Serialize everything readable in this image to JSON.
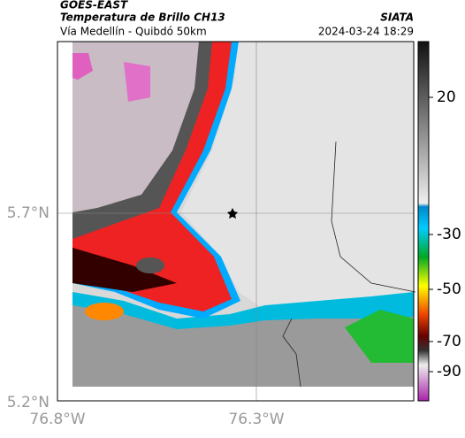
{
  "header": {
    "title": "GOES-EAST",
    "subtitle": "Temperatura de Brillo CH13",
    "source": "SIATA",
    "route": "Vía Medellín - Quibdó 50km",
    "timestamp": "2024-03-24 18:29"
  },
  "axes": {
    "y_labels": [
      "5.7°N",
      "5.2°N"
    ],
    "x_labels": [
      "76.8°W",
      "76.3°W"
    ]
  },
  "colorbar": {
    "ticks": [
      20,
      -30,
      -50,
      -70,
      -90
    ]
  }
}
